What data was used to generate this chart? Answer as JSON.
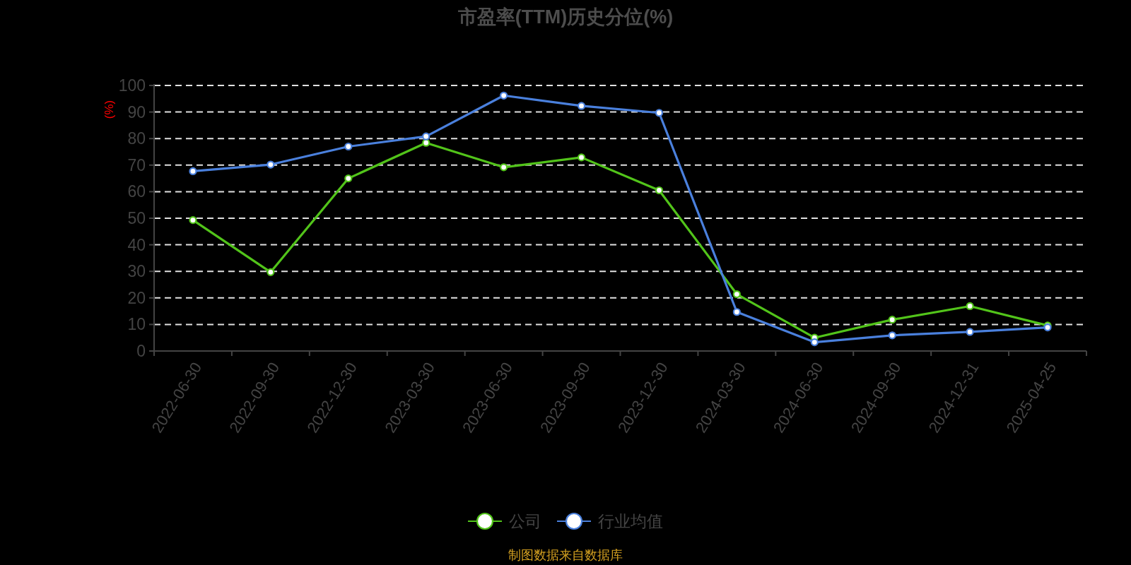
{
  "chart_data": {
    "type": "line",
    "title": "市盈率(TTM)历史分位(%)",
    "ylabel": "(%)",
    "categories": [
      "2022-06-30",
      "2022-09-30",
      "2022-12-30",
      "2023-03-30",
      "2023-06-30",
      "2023-09-30",
      "2023-12-30",
      "2024-03-30",
      "2024-06-30",
      "2024-09-30",
      "2024-12-31",
      "2025-04-25"
    ],
    "series": [
      {
        "name": "公司",
        "color": "#52c41a",
        "values": [
          49.3,
          29.7,
          65.0,
          78.4,
          69.2,
          72.9,
          60.5,
          21.4,
          5.0,
          11.8,
          16.9,
          9.6
        ]
      },
      {
        "name": "行业均值",
        "color": "#4a80dd",
        "values": [
          67.7,
          70.2,
          77.0,
          80.8,
          96.2,
          92.3,
          89.7,
          14.7,
          3.3,
          5.9,
          7.2,
          8.9
        ]
      }
    ],
    "ylim": [
      0,
      100
    ],
    "yticks": [
      0,
      10,
      20,
      30,
      40,
      50,
      60,
      70,
      80,
      90,
      100
    ],
    "grid": "y",
    "legend": "bottom",
    "marker": "circle",
    "line_style": "solid",
    "annotations": [
      "制图数据来自数据库"
    ]
  }
}
